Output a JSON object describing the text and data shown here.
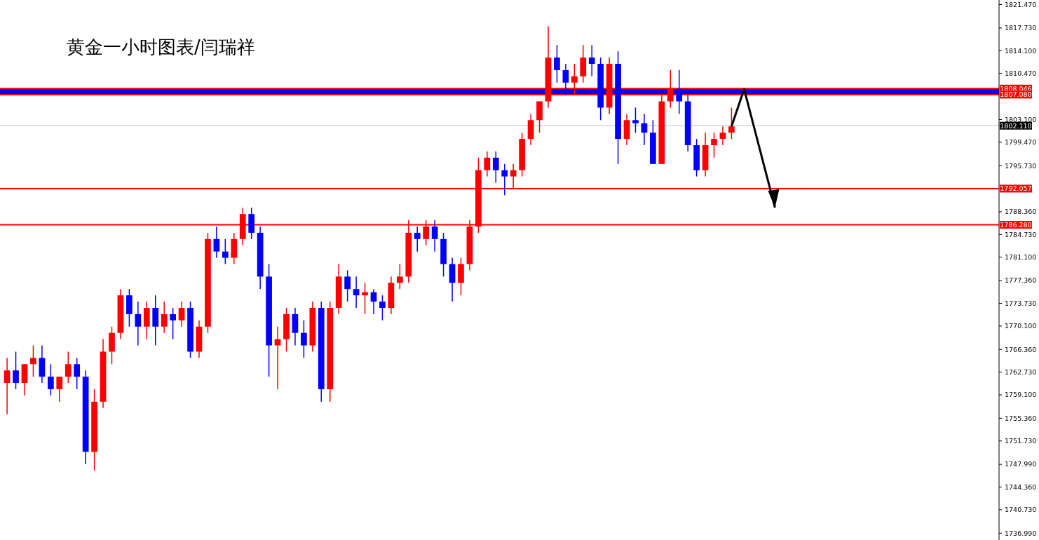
{
  "chart_data": {
    "type": "candlestick",
    "title": "黄金一小时图表/闫瑞祥",
    "categories": [
      null,
      null,
      null,
      null,
      null,
      null,
      null,
      null,
      null,
      null,
      null,
      null,
      null,
      null,
      null,
      null,
      null,
      null,
      null,
      null,
      null,
      null,
      null,
      null,
      null,
      null,
      null,
      null,
      null,
      null,
      null,
      null,
      null,
      null,
      null,
      null,
      null,
      null,
      null,
      null,
      null,
      null,
      null,
      null,
      null,
      null,
      null,
      null,
      null,
      null,
      null,
      null,
      null,
      null,
      null,
      null,
      null,
      null,
      null,
      null,
      null,
      null,
      null,
      null,
      null,
      null,
      null,
      null,
      null,
      null,
      null,
      null,
      null,
      null,
      null,
      null,
      null,
      null,
      null,
      null,
      null,
      null,
      null,
      null,
      null,
      null,
      null,
      null,
      null,
      null,
      null,
      null,
      null,
      null,
      null,
      null,
      null,
      null,
      null,
      null,
      null,
      null,
      null,
      null,
      null,
      null,
      null,
      null,
      null,
      null,
      null,
      null,
      null,
      null
    ],
    "ohlc": [
      [
        1761,
        1765,
        1756,
        1763
      ],
      [
        1763,
        1766,
        1760,
        1761
      ],
      [
        1761,
        1764,
        1759,
        1764
      ],
      [
        1764,
        1767,
        1762,
        1765
      ],
      [
        1765,
        1767,
        1761,
        1762
      ],
      [
        1762,
        1764,
        1759,
        1760
      ],
      [
        1760,
        1762,
        1758,
        1762
      ],
      [
        1762,
        1766,
        1761,
        1764
      ],
      [
        1764,
        1765,
        1760,
        1762
      ],
      [
        1762,
        1763,
        1748,
        1750
      ],
      [
        1750,
        1760,
        1747,
        1758
      ],
      [
        1758,
        1768,
        1757,
        1766
      ],
      [
        1766,
        1770,
        1764,
        1769
      ],
      [
        1769,
        1776,
        1768,
        1775
      ],
      [
        1775,
        1776,
        1770,
        1772
      ],
      [
        1772,
        1774,
        1767,
        1770
      ],
      [
        1770,
        1774,
        1768,
        1773
      ],
      [
        1773,
        1775,
        1767,
        1770
      ],
      [
        1770,
        1774,
        1769,
        1772
      ],
      [
        1772,
        1773,
        1768,
        1771
      ],
      [
        1771,
        1774,
        1770,
        1773
      ],
      [
        1773,
        1774,
        1765,
        1766
      ],
      [
        1766,
        1771,
        1765,
        1770
      ],
      [
        1770,
        1785,
        1769,
        1784
      ],
      [
        1784,
        1786,
        1781,
        1782
      ],
      [
        1782,
        1784,
        1780,
        1781
      ],
      [
        1781,
        1785,
        1780,
        1784
      ],
      [
        1784,
        1789,
        1783,
        1788
      ],
      [
        1788,
        1789,
        1784,
        1785
      ],
      [
        1785,
        1786,
        1776,
        1778
      ],
      [
        1778,
        1780,
        1762,
        1767
      ],
      [
        1767,
        1770,
        1760,
        1768
      ],
      [
        1768,
        1773,
        1766,
        1772
      ],
      [
        1772,
        1773,
        1767,
        1769
      ],
      [
        1769,
        1771,
        1765,
        1767
      ],
      [
        1767,
        1774,
        1766,
        1773
      ],
      [
        1773,
        1774,
        1758,
        1760
      ],
      [
        1760,
        1774,
        1758,
        1773
      ],
      [
        1773,
        1780,
        1772,
        1778
      ],
      [
        1778,
        1779,
        1774,
        1776
      ],
      [
        1776,
        1778,
        1773,
        1775
      ],
      [
        1775,
        1777,
        1772,
        1775.5
      ],
      [
        1775.5,
        1776,
        1772,
        1774
      ],
      [
        1774,
        1775,
        1771,
        1773
      ],
      [
        1773,
        1778,
        1772,
        1777
      ],
      [
        1777,
        1780,
        1776,
        1778
      ],
      [
        1778,
        1787,
        1777,
        1785
      ],
      [
        1785,
        1786,
        1782,
        1784
      ],
      [
        1784,
        1787,
        1783,
        1786
      ],
      [
        1786,
        1787,
        1782,
        1784
      ],
      [
        1784,
        1785,
        1778,
        1780
      ],
      [
        1780,
        1781,
        1774,
        1777
      ],
      [
        1777,
        1781,
        1775,
        1780
      ],
      [
        1780,
        1787,
        1779,
        1786
      ],
      [
        1786,
        1797,
        1785,
        1795
      ],
      [
        1795,
        1798,
        1794,
        1797
      ],
      [
        1797,
        1798,
        1793,
        1795
      ],
      [
        1795,
        1796,
        1791,
        1794
      ],
      [
        1794,
        1796,
        1792,
        1795
      ],
      [
        1795,
        1801,
        1794,
        1800
      ],
      [
        1800,
        1804,
        1799,
        1803
      ],
      [
        1803,
        1806,
        1801,
        1806
      ],
      [
        1806,
        1818,
        1805,
        1813
      ],
      [
        1813,
        1815,
        1809,
        1811
      ],
      [
        1811,
        1812,
        1807,
        1809
      ],
      [
        1809,
        1812,
        1807,
        1810
      ],
      [
        1810,
        1815,
        1809,
        1813
      ],
      [
        1813,
        1815,
        1810,
        1812
      ],
      [
        1812,
        1813,
        1803,
        1805
      ],
      [
        1805,
        1813,
        1804,
        1812
      ],
      [
        1812,
        1814,
        1796,
        1800
      ],
      [
        1800,
        1804,
        1799,
        1803
      ],
      [
        1803,
        1805,
        1801,
        1802.5
      ],
      [
        1802.5,
        1804,
        1799,
        1801
      ],
      [
        1801,
        1803,
        1796,
        1796
      ],
      [
        1796,
        1807,
        1796,
        1806
      ],
      [
        1806,
        1811,
        1805,
        1808
      ],
      [
        1808,
        1811,
        1804,
        1806
      ],
      [
        1806,
        1807,
        1798,
        1799
      ],
      [
        1799,
        1800,
        1794,
        1795
      ],
      [
        1795,
        1801,
        1794,
        1799
      ],
      [
        1799,
        1801,
        1797,
        1800
      ],
      [
        1800,
        1802,
        1799,
        1801
      ],
      [
        1801,
        1805,
        1800,
        1802
      ],
      null,
      null,
      null,
      null,
      null,
      null,
      null,
      null,
      null,
      null,
      null,
      null,
      null,
      null,
      null,
      null,
      null,
      null,
      null,
      null,
      null,
      null,
      null,
      null,
      null,
      null,
      null,
      null,
      null,
      null
    ],
    "colors": [
      "#ff0000",
      "#0000ff",
      "#ff0000",
      "#ff0000",
      "#0000ff",
      "#0000ff",
      "#ff0000",
      "#ff0000",
      "#0000ff",
      "#0000ff",
      "#ff0000",
      "#ff0000",
      "#ff0000",
      "#ff0000",
      "#0000ff",
      "#0000ff",
      "#ff0000",
      "#0000ff",
      "#ff0000",
      "#0000ff",
      "#ff0000",
      "#0000ff",
      "#ff0000",
      "#ff0000",
      "#0000ff",
      "#0000ff",
      "#ff0000",
      "#ff0000",
      "#0000ff",
      "#0000ff",
      "#0000ff",
      "#ff0000",
      "#ff0000",
      "#0000ff",
      "#0000ff",
      "#ff0000",
      "#0000ff",
      "#ff0000",
      "#ff0000",
      "#0000ff",
      "#0000ff",
      "#ff0000",
      "#0000ff",
      "#0000ff",
      "#ff0000",
      "#ff0000",
      "#ff0000",
      "#0000ff",
      "#ff0000",
      "#0000ff",
      "#0000ff",
      "#0000ff",
      "#ff0000",
      "#ff0000",
      "#ff0000",
      "#ff0000",
      "#0000ff",
      "#0000ff",
      "#ff0000",
      "#ff0000",
      "#ff0000",
      "#ff0000",
      "#ff0000",
      "#0000ff",
      "#0000ff",
      "#ff0000",
      "#ff0000",
      "#0000ff",
      "#0000ff",
      "#ff0000",
      "#0000ff",
      "#ff0000",
      "#0000ff",
      "#0000ff",
      "#0000ff",
      "#ff0000",
      "#ff0000",
      "#0000ff",
      "#0000ff",
      "#0000ff",
      "#ff0000",
      "#ff0000",
      "#ff0000",
      "#ff0000",
      null,
      null,
      null,
      null,
      null,
      null,
      null,
      null,
      null,
      null,
      null,
      null,
      null,
      null,
      null,
      null,
      null,
      null,
      null,
      null,
      null,
      null,
      null,
      null,
      null,
      null,
      null,
      null,
      null,
      null
    ],
    "ylim": [
      1735.9,
      1822.2
    ],
    "yticks": [
      {
        "value": 1821.47,
        "label": "1821.470"
      },
      {
        "value": 1817.73,
        "label": "1817.730"
      },
      {
        "value": 1814.1,
        "label": "1814.100"
      },
      {
        "value": 1810.47,
        "label": "1810.470"
      },
      {
        "value": 1803.1,
        "label": "1803.100"
      },
      {
        "value": 1799.47,
        "label": "1799.470"
      },
      {
        "value": 1795.73,
        "label": "1795.730"
      },
      {
        "value": 1788.36,
        "label": "1788.360"
      },
      {
        "value": 1784.73,
        "label": "1784.730"
      },
      {
        "value": 1781.1,
        "label": "1781.100"
      },
      {
        "value": 1777.36,
        "label": "1777.360"
      },
      {
        "value": 1773.73,
        "label": "1773.730"
      },
      {
        "value": 1770.1,
        "label": "1770.100"
      },
      {
        "value": 1766.36,
        "label": "1766.360"
      },
      {
        "value": 1762.73,
        "label": "1762.730"
      },
      {
        "value": 1759.1,
        "label": "1759.100"
      },
      {
        "value": 1755.36,
        "label": "1755.360"
      },
      {
        "value": 1751.73,
        "label": "1751.730"
      },
      {
        "value": 1747.99,
        "label": "1747.990"
      },
      {
        "value": 1744.36,
        "label": "1744.360"
      },
      {
        "value": 1740.73,
        "label": "1740.730"
      },
      {
        "value": 1736.99,
        "label": "1736.990"
      }
    ],
    "tick_labels": "y",
    "bands": [
      {
        "axis": "y",
        "from": 1807.08,
        "to": 1808.046,
        "color": "#0000ff"
      }
    ],
    "ref_lines": [
      {
        "axis": "y",
        "value": 1808.046,
        "label": "1808.046",
        "color": "#ff0000"
      },
      {
        "axis": "y",
        "value": 1807.08,
        "label": "1807.080",
        "color": "#ff0000"
      },
      {
        "axis": "y",
        "value": 1802.11,
        "label": "1802.110",
        "color": "#c0c0c0"
      },
      {
        "axis": "y",
        "value": 1792.057,
        "label": "1792.057",
        "color": "#ff0000"
      },
      {
        "axis": "y",
        "value": 1786.28,
        "label": "1786.280",
        "color": "#ff0000"
      }
    ]
  }
}
